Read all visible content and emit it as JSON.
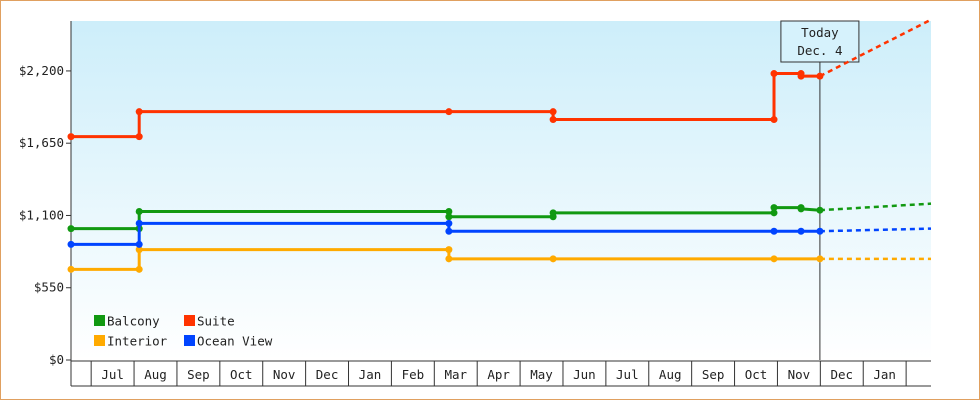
{
  "chart_data": {
    "type": "line",
    "categories": [
      "Jul",
      "Aug",
      "Sep",
      "Oct",
      "Nov",
      "Dec",
      "Jan",
      "Feb",
      "Mar",
      "Apr",
      "May",
      "Jun",
      "Jul",
      "Aug",
      "Sep",
      "Oct",
      "Nov",
      "Dec",
      "Jan"
    ],
    "xlim": [
      -0.47,
      19.58
    ],
    "ylim": [
      0,
      2580
    ],
    "yticks": [
      {
        "value": 0,
        "label": "$0"
      },
      {
        "value": 550,
        "label": "$550"
      },
      {
        "value": 1100,
        "label": "$1,100"
      },
      {
        "value": 1650,
        "label": "$1,650"
      },
      {
        "value": 2200,
        "label": "$2,200"
      }
    ],
    "series": [
      {
        "name": "Balcony",
        "color": "#119911",
        "x": [
          -0.47,
          1.12,
          1.12,
          8.34,
          8.34,
          10.77,
          10.77,
          15.92,
          15.92,
          16.55,
          16.55,
          16.99
        ],
        "values": [
          1000,
          1000,
          1130,
          1130,
          1090,
          1090,
          1120,
          1120,
          1160,
          1160,
          1150,
          1140
        ],
        "projection": {
          "x": [
            16.99,
            19.58
          ],
          "values": [
            1140,
            1190
          ]
        }
      },
      {
        "name": "Suite",
        "color": "#ff3300",
        "x": [
          -0.47,
          1.12,
          1.12,
          8.34,
          10.77,
          10.77,
          15.92,
          15.92,
          16.55,
          16.55,
          16.99
        ],
        "values": [
          1700,
          1700,
          1890,
          1890,
          1890,
          1830,
          1830,
          2180,
          2180,
          2160,
          2160
        ],
        "projection": {
          "x": [
            16.99,
            19.58
          ],
          "values": [
            2160,
            2590
          ]
        }
      },
      {
        "name": "Interior",
        "color": "#ffaa00",
        "x": [
          -0.47,
          1.12,
          1.12,
          8.34,
          8.34,
          10.77,
          15.92,
          16.99
        ],
        "values": [
          690,
          690,
          840,
          840,
          770,
          770,
          770,
          770
        ],
        "projection": {
          "x": [
            16.99,
            19.58
          ],
          "values": [
            770,
            770
          ]
        }
      },
      {
        "name": "Ocean View",
        "color": "#0044ff",
        "x": [
          -0.47,
          1.12,
          1.12,
          8.34,
          8.34,
          15.92,
          16.55,
          16.99
        ],
        "values": [
          880,
          880,
          1040,
          1040,
          980,
          980,
          980,
          980
        ],
        "projection": {
          "x": [
            16.99,
            19.58
          ],
          "values": [
            980,
            1000
          ]
        }
      }
    ],
    "today": {
      "label": "Today",
      "date": "Dec. 4",
      "x": 16.99
    },
    "legend": "lower-left"
  }
}
